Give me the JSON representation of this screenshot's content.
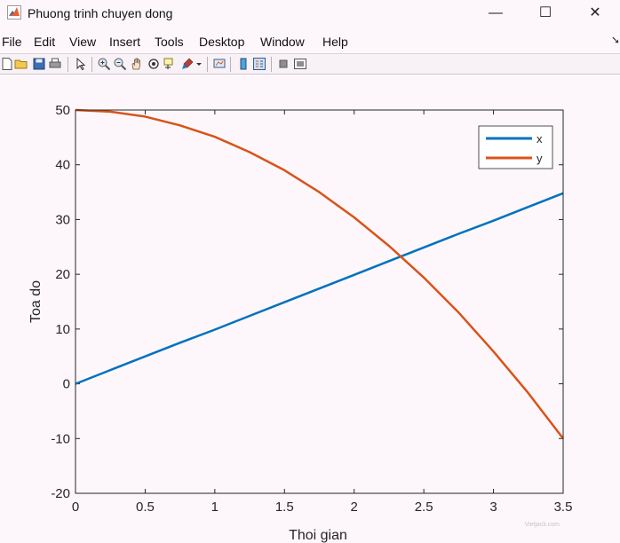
{
  "window": {
    "title": "Phuong trinh chuyen dong",
    "minimize_glyph": "—",
    "maximize_glyph": "☐",
    "close_glyph": "✕"
  },
  "menu": [
    "File",
    "Edit",
    "View",
    "Insert",
    "Tools",
    "Desktop",
    "Window",
    "Help"
  ],
  "menu_overflow_glyph": "➘",
  "toolbar_icons": [
    "new-figure-icon",
    "open-file-icon",
    "save-icon",
    "print-icon",
    "select-arrow-icon",
    "zoom-in-icon",
    "zoom-out-icon",
    "pan-hand-icon",
    "rotate-3d-icon",
    "data-cursor-icon",
    "brush-icon",
    "brush-dropdown-icon",
    "link-plot-icon",
    "insert-colorbar-icon",
    "insert-legend-icon",
    "hide-plot-tools-icon",
    "show-plot-tools-icon"
  ],
  "colors": {
    "x_series": "#0072BD",
    "y_series": "#D95319",
    "axes": "#262626",
    "background": "#fdf7fb"
  },
  "chart_data": {
    "type": "line",
    "title": "",
    "xlabel": "Thoi gian",
    "ylabel": "Toa do",
    "xlim": [
      0,
      3.5
    ],
    "ylim": [
      -20,
      50
    ],
    "xticks": [
      0,
      0.5,
      1,
      1.5,
      2,
      2.5,
      3,
      3.5
    ],
    "xtick_labels": [
      "0",
      "0.5",
      "1",
      "1.5",
      "2",
      "2.5",
      "3",
      "3.5"
    ],
    "yticks": [
      -20,
      -10,
      0,
      10,
      20,
      30,
      40,
      50
    ],
    "ytick_labels": [
      "-20",
      "-10",
      "0",
      "10",
      "20",
      "30",
      "40",
      "50"
    ],
    "grid": false,
    "legend_position": "top-right",
    "x": [
      0,
      0.25,
      0.5,
      0.75,
      1,
      1.25,
      1.5,
      1.75,
      2,
      2.25,
      2.5,
      2.75,
      3,
      3.25,
      3.5
    ],
    "series": [
      {
        "name": "x",
        "values": [
          0,
          2.5,
          5,
          7.5,
          9.9,
          12.4,
          14.9,
          17.4,
          19.9,
          22.4,
          24.9,
          27.4,
          29.8,
          32.3,
          34.8
        ]
      },
      {
        "name": "y",
        "values": [
          50,
          49.7,
          48.8,
          47.2,
          45.1,
          42.3,
          39,
          35,
          30.4,
          25.2,
          19.4,
          13,
          5.9,
          -1.7,
          -10
        ]
      }
    ]
  },
  "watermark": "Vietjack.com"
}
